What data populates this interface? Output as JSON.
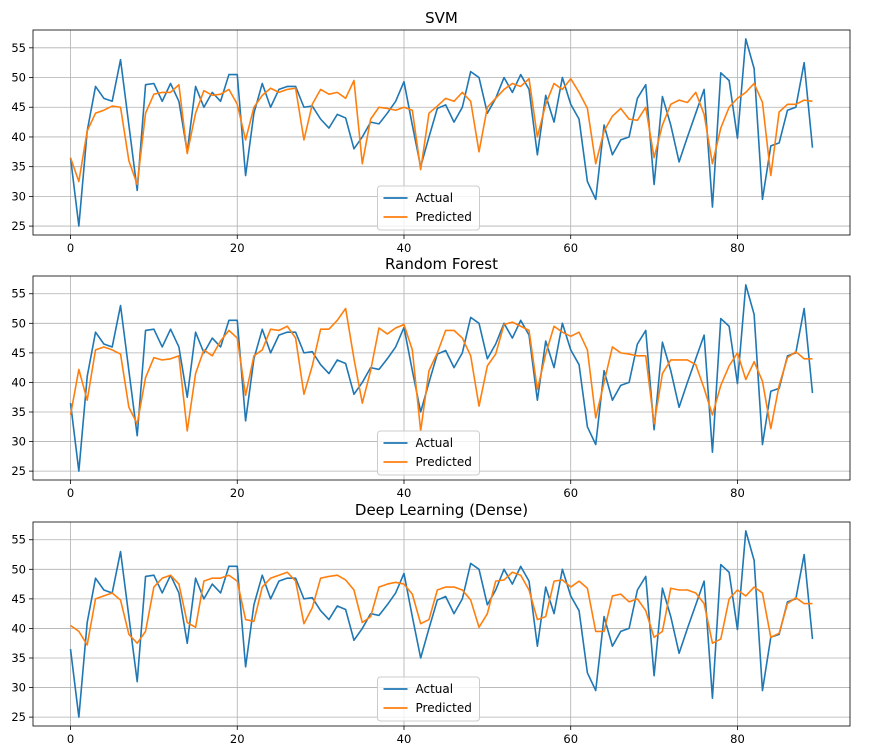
{
  "chart_data": [
    {
      "type": "line",
      "title": "SVM",
      "xlabel": "",
      "ylabel": "",
      "xlim": [
        -4.5,
        93.5
      ],
      "ylim": [
        23.5,
        58
      ],
      "xticks": [
        0,
        20,
        40,
        60,
        80
      ],
      "yticks": [
        25,
        30,
        35,
        40,
        45,
        50,
        55
      ],
      "grid": true,
      "legend_position": "lower-center",
      "series": [
        {
          "name": "Actual",
          "color": "#1f77b4",
          "values": [
            36.5,
            25,
            41,
            48.5,
            46.5,
            46,
            53,
            42,
            31,
            48.8,
            49,
            46,
            49,
            46,
            37.5,
            48.5,
            45,
            47.5,
            46,
            50.5,
            50.5,
            33.5,
            44,
            49,
            45,
            48,
            48.5,
            48.5,
            45,
            45.2,
            43,
            41.5,
            43.8,
            43.2,
            38,
            40,
            42.5,
            42.2,
            44,
            46,
            49.3,
            42,
            35,
            40,
            44.8,
            45.4,
            42.5,
            45,
            51,
            50,
            44,
            46.5,
            50,
            47.5,
            50.5,
            48,
            37,
            47,
            42.5,
            50,
            45.5,
            43,
            32.5,
            29.5,
            42,
            37,
            39.5,
            40,
            46.5,
            48.8,
            32,
            46.8,
            42,
            35.8,
            40,
            44,
            48,
            28.2,
            50.8,
            49.5,
            39.8,
            56.5,
            51.5,
            29.5,
            38.5,
            39,
            44.5,
            45,
            52.5,
            38.2
          ]
        },
        {
          "name": "Predicted",
          "color": "#ff7f0e",
          "values": [
            36.5,
            32.5,
            41,
            44,
            44.5,
            45.2,
            45,
            36,
            32,
            44,
            47.2,
            47.5,
            47.5,
            48.8,
            37.2,
            44,
            47.8,
            47,
            47.2,
            48,
            45.5,
            39.5,
            45,
            47,
            48.2,
            47.5,
            48,
            48.2,
            39.5,
            45.5,
            48,
            47.2,
            47.5,
            46.5,
            49.5,
            35.5,
            43,
            45,
            44.8,
            44.5,
            45,
            44.5,
            34.5,
            44,
            45.2,
            46.5,
            46,
            47.5,
            46,
            37.5,
            45,
            46.5,
            48,
            49,
            48.5,
            49.8,
            40,
            45.5,
            49,
            48,
            49.8,
            47.5,
            44.8,
            35.5,
            41,
            43.5,
            44.8,
            43,
            42.8,
            45,
            36.5,
            42,
            45.5,
            46.2,
            45.8,
            47.5,
            43.8,
            35.5,
            41.5,
            45,
            46.5,
            47.5,
            49,
            45.8,
            33.5,
            44.2,
            45.5,
            45.5,
            46.2,
            46
          ]
        }
      ]
    },
    {
      "type": "line",
      "title": "Random Forest",
      "xlabel": "",
      "ylabel": "",
      "xlim": [
        -4.5,
        93.5
      ],
      "ylim": [
        23.5,
        58
      ],
      "xticks": [
        0,
        20,
        40,
        60,
        80
      ],
      "yticks": [
        25,
        30,
        35,
        40,
        45,
        50,
        55
      ],
      "grid": true,
      "legend_position": "lower-center",
      "series": [
        {
          "name": "Actual",
          "color": "#1f77b4",
          "values": [
            36.5,
            25,
            41,
            48.5,
            46.5,
            46,
            53,
            42,
            31,
            48.8,
            49,
            46,
            49,
            46,
            37.5,
            48.5,
            45,
            47.5,
            46,
            50.5,
            50.5,
            33.5,
            44,
            49,
            45,
            48,
            48.5,
            48.5,
            45,
            45.2,
            43,
            41.5,
            43.8,
            43.2,
            38,
            40,
            42.5,
            42.2,
            44,
            46,
            49.3,
            42,
            35,
            40,
            44.8,
            45.4,
            42.5,
            45,
            51,
            50,
            44,
            46.5,
            50,
            47.5,
            50.5,
            48,
            37,
            47,
            42.5,
            50,
            45.5,
            43,
            32.5,
            29.5,
            42,
            37,
            39.5,
            40,
            46.5,
            48.8,
            32,
            46.8,
            42,
            35.8,
            40,
            44,
            48,
            28.2,
            50.8,
            49.5,
            39.8,
            56.5,
            51.5,
            29.5,
            38.5,
            39,
            44.5,
            45,
            52.5,
            38.2
          ]
        },
        {
          "name": "Predicted",
          "color": "#ff7f0e",
          "values": [
            34.5,
            42.2,
            37,
            45.5,
            46,
            45.5,
            44.8,
            35.8,
            33,
            40.8,
            44.2,
            43.8,
            44,
            44.5,
            31.8,
            41.5,
            45.5,
            44.5,
            47,
            48.8,
            47.5,
            37.8,
            44.5,
            45.5,
            49,
            48.8,
            49.5,
            47.5,
            38,
            42.8,
            49,
            49,
            50.5,
            52.5,
            44,
            36.5,
            42,
            49.2,
            48.2,
            49.2,
            49.8,
            45.5,
            31.8,
            42,
            45,
            48.8,
            48.8,
            47.5,
            44.5,
            36,
            42.8,
            44.8,
            49.8,
            50.2,
            49.5,
            48.8,
            38.8,
            44.8,
            49.5,
            48.5,
            47.8,
            48.5,
            45.5,
            34,
            40,
            46,
            45,
            44.8,
            44.5,
            44.5,
            33,
            41.5,
            43.8,
            43.8,
            43.8,
            43,
            39,
            34.5,
            39.5,
            42.8,
            45,
            40.5,
            43.5,
            40.2,
            32.2,
            39.5,
            44.2,
            45.2,
            44,
            44
          ]
        }
      ]
    },
    {
      "type": "line",
      "title": "Deep Learning (Dense)",
      "xlabel": "",
      "ylabel": "",
      "xlim": [
        -4.5,
        93.5
      ],
      "ylim": [
        23.5,
        58
      ],
      "xticks": [
        0,
        20,
        40,
        60,
        80
      ],
      "yticks": [
        25,
        30,
        35,
        40,
        45,
        50,
        55
      ],
      "grid": true,
      "legend_position": "lower-center",
      "series": [
        {
          "name": "Actual",
          "color": "#1f77b4",
          "values": [
            36.5,
            25,
            41,
            48.5,
            46.5,
            46,
            53,
            42,
            31,
            48.8,
            49,
            46,
            49,
            46,
            37.5,
            48.5,
            45,
            47.5,
            46,
            50.5,
            50.5,
            33.5,
            44,
            49,
            45,
            48,
            48.5,
            48.5,
            45,
            45.2,
            43,
            41.5,
            43.8,
            43.2,
            38,
            40,
            42.5,
            42.2,
            44,
            46,
            49.3,
            42,
            35,
            40,
            44.8,
            45.4,
            42.5,
            45,
            51,
            50,
            44,
            46.5,
            50,
            47.5,
            50.5,
            48,
            37,
            47,
            42.5,
            50,
            45.5,
            43,
            32.5,
            29.5,
            42,
            37,
            39.5,
            40,
            46.5,
            48.8,
            32,
            46.8,
            42,
            35.8,
            40,
            44,
            48,
            28.2,
            50.8,
            49.5,
            39.8,
            56.5,
            51.5,
            29.5,
            38.5,
            39,
            44.5,
            45,
            52.5,
            38.2
          ]
        },
        {
          "name": "Predicted",
          "color": "#ff7f0e",
          "values": [
            40.5,
            39.5,
            37.2,
            45,
            45.5,
            46,
            44.8,
            39,
            37.5,
            39.5,
            47,
            48.5,
            49,
            47.5,
            41,
            40.2,
            48,
            48.5,
            48.5,
            49,
            48,
            41.5,
            41.2,
            47,
            48.5,
            49,
            49.5,
            48,
            40.8,
            43.5,
            48.5,
            48.8,
            49,
            48.2,
            46.5,
            41,
            42,
            47,
            47.5,
            47.8,
            47.5,
            45.8,
            40.8,
            41.5,
            46.5,
            47,
            47,
            46.5,
            44.8,
            40.2,
            42.5,
            48,
            48.2,
            49.5,
            49,
            46.5,
            41.5,
            42,
            48,
            48.2,
            47,
            48,
            46.8,
            39.5,
            39.5,
            45.5,
            45.8,
            44.5,
            45,
            43,
            38.5,
            39.5,
            46.8,
            46.5,
            46.5,
            46,
            44.2,
            37.5,
            38.2,
            45,
            46.5,
            45.5,
            47,
            46,
            38.5,
            39.2,
            44.2,
            45.2,
            44.2,
            44.2
          ]
        }
      ]
    }
  ]
}
